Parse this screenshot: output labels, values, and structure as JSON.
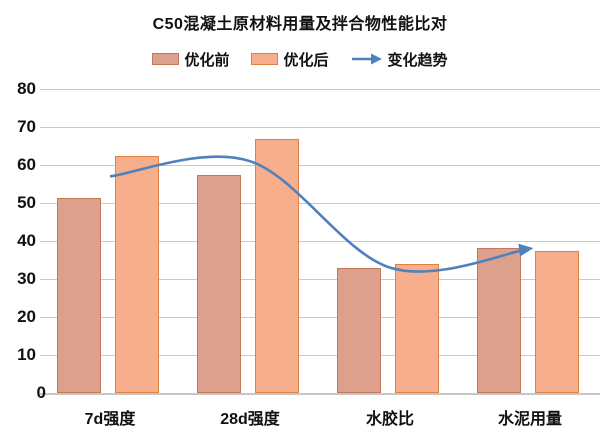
{
  "title": "C50混凝土原材料用量及拌合物性能比对",
  "legend": {
    "items": [
      {
        "label": "优化前",
        "kind": "swatch"
      },
      {
        "label": "优化后",
        "kind": "swatch"
      },
      {
        "label": "变化趋势",
        "kind": "arrow"
      }
    ]
  },
  "colors": {
    "before_fill": "#DDA08D",
    "before_border": "#C4775A",
    "after_fill": "#F7AE8C",
    "after_border": "#DE8244",
    "trend_line": "#4E81BD",
    "gridline": "#BCCCE2",
    "axis_line": "#C6C6C6",
    "text": "#111111"
  },
  "chart_data": {
    "type": "bar",
    "title": "C50混凝土原材料用量及拌合物性能比对",
    "categories": [
      "7d强度",
      "28d强度",
      "水胶比",
      "水泥用量"
    ],
    "series": [
      {
        "name": "优化前",
        "type": "bar",
        "values": [
          51.2,
          57.3,
          33.0,
          38.2
        ]
      },
      {
        "name": "优化后",
        "type": "bar",
        "values": [
          62.3,
          66.8,
          34.0,
          37.5
        ]
      },
      {
        "name": "变化趋势",
        "type": "line",
        "values": [
          57.0,
          61.0,
          33.0,
          38.0
        ]
      }
    ],
    "xlabel": "",
    "ylabel": "",
    "ylim": [
      0,
      80
    ],
    "ytick_step": 10,
    "yticks": [
      0,
      10,
      20,
      30,
      40,
      50,
      60,
      70,
      80
    ],
    "grid": true,
    "legend_position": "top",
    "legend_entries": [
      "优化前",
      "优化后",
      "变化趋势"
    ]
  }
}
